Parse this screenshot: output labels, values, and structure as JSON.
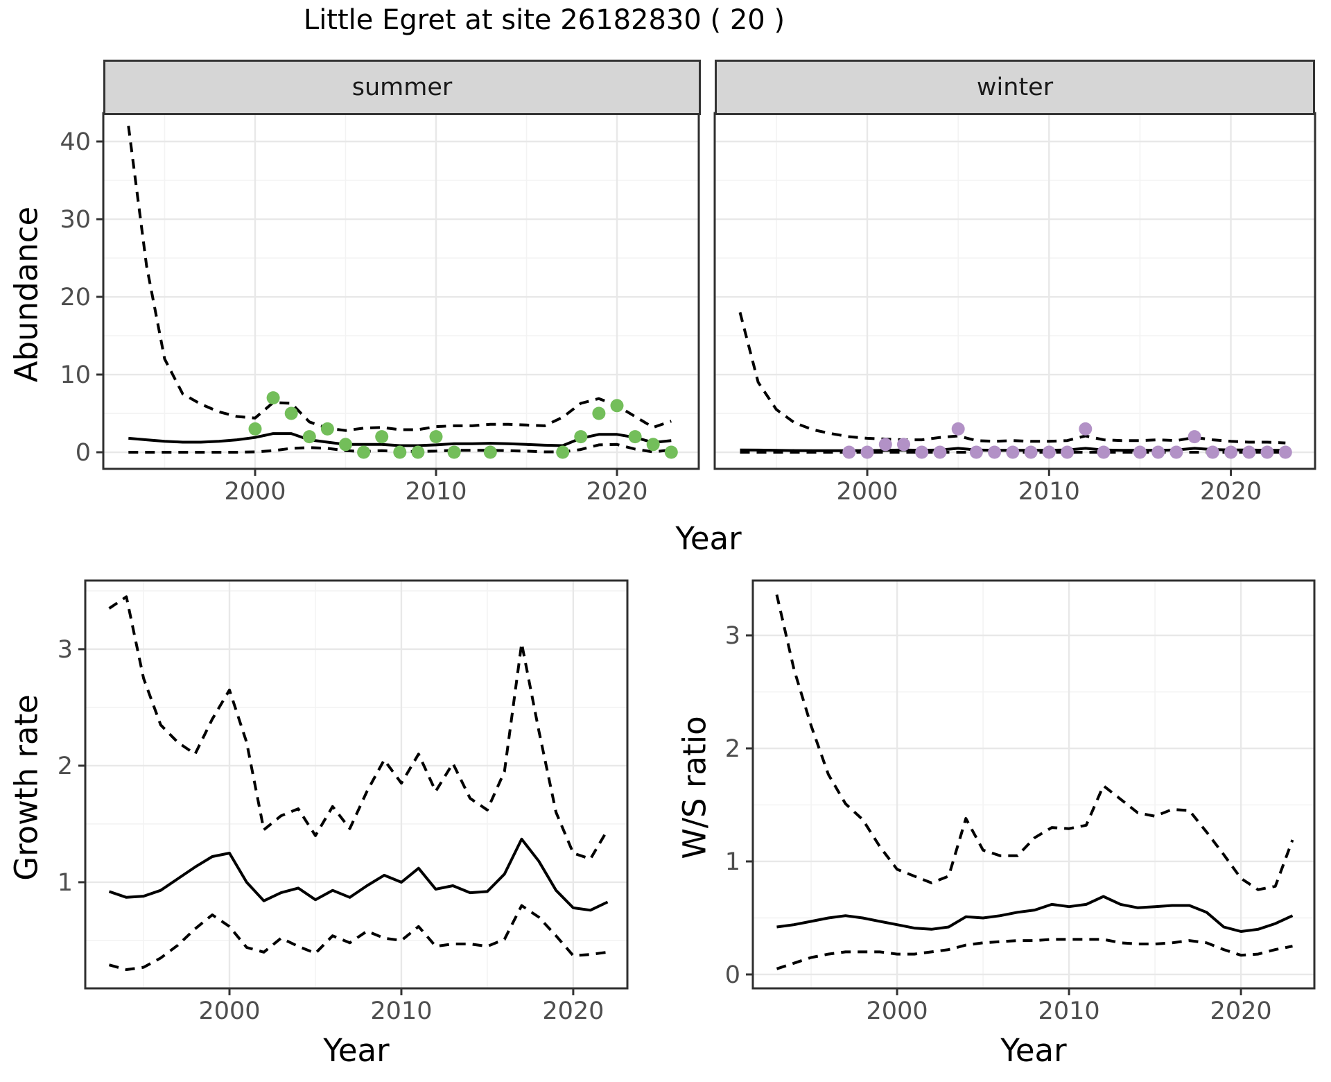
{
  "title": "Little Egret at site 26182830 ( 20 )",
  "colors": {
    "summer_point": "#73be5a",
    "winter_point": "#b291c6",
    "line": "#000000",
    "panel_border": "#2f2f2f",
    "tick_mark": "#333333",
    "grid_major": "#e8e8e8",
    "grid_minor": "#f3f3f3",
    "strip_bg": "#d6d6d6",
    "tick_text": "#4d4d4d"
  },
  "chart_data": [
    {
      "id": "abundance_summer",
      "type": "line",
      "strip": "summer",
      "ylabel": "Abundance",
      "xlabel": "Year",
      "legend": "none",
      "grid": true,
      "xlim": [
        1991.61,
        2024.52
      ],
      "ylim": [
        -2.14,
        43.66
      ],
      "x_ticks": [
        2000,
        2010,
        2020
      ],
      "x_minor": [
        1995,
        2005,
        2015
      ],
      "y_ticks": [
        0,
        10,
        20,
        30,
        40
      ],
      "y_minor": [
        5,
        15,
        25,
        35
      ],
      "years": [
        1993,
        1994,
        1995,
        1996,
        1997,
        1998,
        1999,
        2000,
        2001,
        2002,
        2003,
        2004,
        2005,
        2006,
        2007,
        2008,
        2009,
        2010,
        2011,
        2012,
        2013,
        2014,
        2015,
        2016,
        2017,
        2018,
        2019,
        2020,
        2021,
        2022,
        2023
      ],
      "series": [
        {
          "name": "upper_ci",
          "style": "dashed",
          "values": [
            42,
            24,
            12,
            7.5,
            6.2,
            5.2,
            4.6,
            4.4,
            6.4,
            6.3,
            3.9,
            3.1,
            2.8,
            3.1,
            3.2,
            2.9,
            2.9,
            3.3,
            3.4,
            3.4,
            3.6,
            3.6,
            3.5,
            3.4,
            4.5,
            6.3,
            6.9,
            6.0,
            4.6,
            3.2,
            4.0
          ]
        },
        {
          "name": "fit",
          "style": "solid",
          "values": [
            1.8,
            1.6,
            1.4,
            1.3,
            1.3,
            1.4,
            1.6,
            1.9,
            2.4,
            2.4,
            1.6,
            1.3,
            1.0,
            1.0,
            1.0,
            0.85,
            0.85,
            0.95,
            1.1,
            1.1,
            1.15,
            1.1,
            1.0,
            0.9,
            0.85,
            1.8,
            2.3,
            2.3,
            1.9,
            1.25,
            1.5
          ]
        },
        {
          "name": "lower_ci",
          "style": "dashed",
          "values": [
            0,
            0,
            0,
            0,
            0,
            0,
            0,
            0.05,
            0.2,
            0.5,
            0.6,
            0.5,
            0.2,
            0.1,
            0.2,
            0.1,
            0.1,
            0.15,
            0.25,
            0.25,
            0.25,
            0.2,
            0.15,
            0.05,
            0.05,
            0.35,
            0.95,
            1.0,
            0.4,
            0.05,
            0.3
          ]
        }
      ],
      "points": {
        "name": "observed_counts",
        "color_key": "summer_point",
        "x": [
          2000,
          2001,
          2002,
          2003,
          2004,
          2005,
          2006,
          2007,
          2008,
          2009,
          2010,
          2011,
          2013,
          2017,
          2018,
          2019,
          2020,
          2021,
          2022,
          2023
        ],
        "y": [
          3,
          7,
          5,
          2,
          3,
          1,
          0,
          2,
          0,
          0,
          2,
          0,
          0,
          0,
          2,
          5,
          6,
          2,
          1,
          0
        ]
      }
    },
    {
      "id": "abundance_winter",
      "type": "line",
      "strip": "winter",
      "ylabel": "",
      "xlabel": "Year",
      "legend": "none",
      "grid": true,
      "xlim": [
        1991.61,
        2024.63
      ],
      "ylim": [
        -2.14,
        43.66
      ],
      "x_ticks": [
        2000,
        2010,
        2020
      ],
      "x_minor": [
        1995,
        2005,
        2015
      ],
      "y_ticks": [
        0,
        10,
        20,
        30,
        40
      ],
      "y_minor": [
        5,
        15,
        25,
        35
      ],
      "years": [
        1993,
        1994,
        1995,
        1996,
        1997,
        1998,
        1999,
        2000,
        2001,
        2002,
        2003,
        2004,
        2005,
        2006,
        2007,
        2008,
        2009,
        2010,
        2011,
        2012,
        2013,
        2014,
        2015,
        2016,
        2017,
        2018,
        2019,
        2020,
        2021,
        2022,
        2023
      ],
      "series": [
        {
          "name": "upper_ci",
          "style": "dashed",
          "values": [
            18,
            9,
            5.5,
            3.8,
            2.9,
            2.4,
            2.0,
            1.8,
            1.7,
            1.6,
            1.6,
            1.9,
            2.1,
            1.5,
            1.4,
            1.5,
            1.4,
            1.4,
            1.5,
            2.1,
            1.6,
            1.5,
            1.5,
            1.6,
            1.5,
            1.9,
            1.6,
            1.4,
            1.3,
            1.3,
            1.2
          ]
        },
        {
          "name": "fit",
          "style": "solid",
          "values": [
            0.3,
            0.28,
            0.25,
            0.22,
            0.2,
            0.2,
            0.2,
            0.2,
            0.25,
            0.3,
            0.25,
            0.3,
            0.5,
            0.3,
            0.25,
            0.25,
            0.25,
            0.25,
            0.3,
            0.5,
            0.3,
            0.25,
            0.25,
            0.25,
            0.3,
            0.5,
            0.35,
            0.3,
            0.3,
            0.25,
            0.25
          ]
        },
        {
          "name": "lower_ci",
          "style": "dashed",
          "values": [
            0,
            0,
            0,
            0,
            0,
            0,
            0,
            0,
            0,
            0,
            0,
            0,
            0,
            0,
            0,
            0,
            0,
            0,
            0,
            0,
            0,
            0,
            0,
            0,
            0,
            0,
            0,
            0,
            0,
            0,
            0
          ]
        }
      ],
      "points": {
        "name": "observed_counts",
        "color_key": "winter_point",
        "x": [
          1999,
          2000,
          2001,
          2002,
          2003,
          2004,
          2005,
          2006,
          2007,
          2008,
          2009,
          2010,
          2011,
          2012,
          2013,
          2015,
          2016,
          2017,
          2018,
          2019,
          2020,
          2021,
          2022,
          2023
        ],
        "y": [
          0,
          0,
          1,
          1,
          0,
          0,
          3,
          0,
          0,
          0,
          0,
          0,
          0,
          3,
          0,
          0,
          0,
          0,
          2,
          0,
          0,
          0,
          0,
          0
        ]
      }
    },
    {
      "id": "growth_rate",
      "type": "line",
      "strip": "",
      "ylabel": "Growth rate",
      "xlabel": "Year",
      "legend": "none",
      "grid": true,
      "xlim": [
        1991.61,
        2023.15
      ],
      "ylim": [
        0.089,
        3.589
      ],
      "x_ticks": [
        2000,
        2010,
        2020
      ],
      "x_minor": [
        1995,
        2005,
        2015
      ],
      "y_ticks": [
        1,
        2,
        3
      ],
      "y_minor": [
        0.5,
        1.5,
        2.5,
        3.5
      ],
      "years": [
        1993,
        1994,
        1995,
        1996,
        1997,
        1998,
        1999,
        2000,
        2001,
        2002,
        2003,
        2004,
        2005,
        2006,
        2007,
        2008,
        2009,
        2010,
        2011,
        2012,
        2013,
        2014,
        2015,
        2016,
        2017,
        2018,
        2019,
        2020,
        2021,
        2022
      ],
      "series": [
        {
          "name": "upper_ci",
          "style": "dashed",
          "values": [
            3.35,
            3.45,
            2.75,
            2.35,
            2.2,
            2.1,
            2.4,
            2.65,
            2.2,
            1.45,
            1.57,
            1.63,
            1.4,
            1.65,
            1.46,
            1.78,
            2.05,
            1.85,
            2.1,
            1.78,
            2.02,
            1.72,
            1.62,
            1.95,
            3.05,
            2.3,
            1.6,
            1.25,
            1.2,
            1.45
          ]
        },
        {
          "name": "fit",
          "style": "solid",
          "values": [
            0.92,
            0.87,
            0.88,
            0.93,
            1.03,
            1.13,
            1.22,
            1.25,
            1.0,
            0.84,
            0.91,
            0.95,
            0.85,
            0.93,
            0.87,
            0.97,
            1.06,
            1.0,
            1.12,
            0.94,
            0.97,
            0.91,
            0.92,
            1.07,
            1.37,
            1.18,
            0.93,
            0.78,
            0.76,
            0.83
          ]
        },
        {
          "name": "lower_ci",
          "style": "dashed",
          "values": [
            0.29,
            0.25,
            0.27,
            0.35,
            0.46,
            0.6,
            0.72,
            0.62,
            0.44,
            0.4,
            0.52,
            0.45,
            0.39,
            0.54,
            0.48,
            0.58,
            0.52,
            0.5,
            0.62,
            0.45,
            0.47,
            0.47,
            0.45,
            0.51,
            0.8,
            0.7,
            0.54,
            0.37,
            0.38,
            0.4
          ]
        }
      ],
      "points": null
    },
    {
      "id": "ws_ratio",
      "type": "line",
      "strip": "",
      "ylabel": "W/S ratio",
      "xlabel": "Year",
      "legend": "none",
      "grid": true,
      "xlim": [
        1991.61,
        2024.27
      ],
      "ylim": [
        -0.123,
        3.485
      ],
      "x_ticks": [
        2000,
        2010,
        2020
      ],
      "x_minor": [
        1995,
        2005,
        2015
      ],
      "y_ticks": [
        0,
        1,
        2,
        3
      ],
      "y_minor": [
        0.5,
        1.5,
        2.5
      ],
      "years": [
        1993,
        1994,
        1995,
        1996,
        1997,
        1998,
        1999,
        2000,
        2001,
        2002,
        2003,
        2004,
        2005,
        2006,
        2007,
        2008,
        2009,
        2010,
        2011,
        2012,
        2013,
        2014,
        2015,
        2016,
        2017,
        2018,
        2019,
        2020,
        2021,
        2022,
        2023
      ],
      "series": [
        {
          "name": "upper_ci",
          "style": "dashed",
          "values": [
            3.36,
            2.7,
            2.2,
            1.77,
            1.51,
            1.37,
            1.13,
            0.93,
            0.87,
            0.81,
            0.87,
            1.38,
            1.1,
            1.05,
            1.05,
            1.21,
            1.3,
            1.29,
            1.32,
            1.67,
            1.55,
            1.43,
            1.4,
            1.46,
            1.45,
            1.26,
            1.06,
            0.85,
            0.75,
            0.78,
            1.19
          ]
        },
        {
          "name": "fit",
          "style": "solid",
          "values": [
            0.42,
            0.44,
            0.47,
            0.5,
            0.52,
            0.5,
            0.47,
            0.44,
            0.41,
            0.4,
            0.42,
            0.51,
            0.5,
            0.52,
            0.55,
            0.57,
            0.62,
            0.6,
            0.62,
            0.69,
            0.62,
            0.59,
            0.6,
            0.61,
            0.61,
            0.55,
            0.42,
            0.38,
            0.4,
            0.45,
            0.52
          ]
        },
        {
          "name": "lower_ci",
          "style": "dashed",
          "values": [
            0.05,
            0.1,
            0.15,
            0.18,
            0.2,
            0.2,
            0.2,
            0.18,
            0.18,
            0.2,
            0.22,
            0.26,
            0.28,
            0.29,
            0.3,
            0.3,
            0.31,
            0.31,
            0.31,
            0.31,
            0.28,
            0.27,
            0.27,
            0.28,
            0.3,
            0.28,
            0.22,
            0.17,
            0.18,
            0.22,
            0.25
          ]
        }
      ],
      "points": null
    }
  ]
}
